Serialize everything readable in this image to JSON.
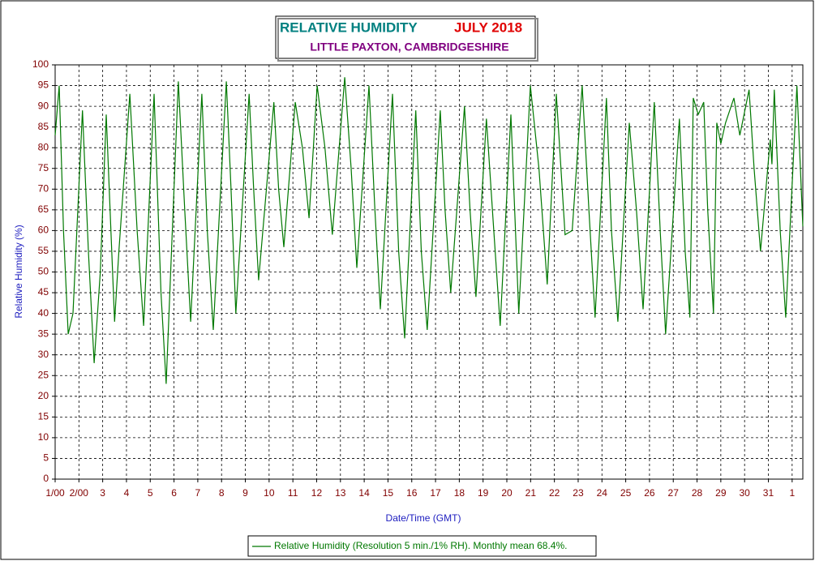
{
  "chart_data": {
    "type": "line",
    "title": "RELATIVE HUMIDITY",
    "title_date": "JULY 2018",
    "subtitle": "LITTLE PAXTON, CAMBRIDGESHIRE",
    "xlabel": "Date/Time (GMT)",
    "ylabel": "Relative Humidity (%)",
    "xlim": [
      1,
      32.45
    ],
    "ylim": [
      0,
      100
    ],
    "xticks": [
      {
        "value": 1,
        "label": "1/00"
      },
      {
        "value": 2,
        "label": "2/00"
      },
      3,
      4,
      5,
      6,
      7,
      8,
      9,
      10,
      11,
      12,
      13,
      14,
      15,
      16,
      17,
      18,
      19,
      20,
      21,
      22,
      23,
      24,
      25,
      26,
      27,
      28,
      29,
      30,
      31,
      {
        "value": 32,
        "label": "1"
      }
    ],
    "yticks": [
      0,
      5,
      10,
      15,
      20,
      25,
      30,
      35,
      40,
      45,
      50,
      55,
      60,
      65,
      70,
      75,
      80,
      85,
      90,
      95,
      100
    ],
    "grid": true,
    "series": [
      {
        "name": "Relative Humidity (Resolution 5 min./1% RH). Monthly mean 68.4%.",
        "color": "#007800",
        "x": [
          1.0,
          1.17,
          1.35,
          1.55,
          1.75,
          2.15,
          2.4,
          2.64,
          2.9,
          3.15,
          3.5,
          3.68,
          4.14,
          4.45,
          4.72,
          5.16,
          5.45,
          5.67,
          6.18,
          6.45,
          6.7,
          7.17,
          7.4,
          7.65,
          8.2,
          8.4,
          8.6,
          9.16,
          9.35,
          9.56,
          10.2,
          10.4,
          10.62,
          11.1,
          11.4,
          11.68,
          12.02,
          12.35,
          12.66,
          13.18,
          13.45,
          13.69,
          14.2,
          14.45,
          14.68,
          15.19,
          15.45,
          15.7,
          16.17,
          16.4,
          16.65,
          17.2,
          17.4,
          17.64,
          18.22,
          18.45,
          18.7,
          19.14,
          19.45,
          19.72,
          20.17,
          20.5,
          20.99,
          21.35,
          21.7,
          22.08,
          22.45,
          22.75,
          23.17,
          23.45,
          23.71,
          24.19,
          24.4,
          24.67,
          25.15,
          25.45,
          25.73,
          26.2,
          26.45,
          26.68,
          27.26,
          27.5,
          27.7,
          27.84,
          28.05,
          28.28,
          28.45,
          28.69,
          28.83,
          29.0,
          29.2,
          29.55,
          29.8,
          30.19,
          30.4,
          30.67,
          31.08,
          31.15,
          31.25,
          31.5,
          31.73,
          32.2,
          32.45
        ],
        "values": [
          83,
          95,
          60,
          35,
          40,
          89,
          55,
          28,
          50,
          88,
          38,
          55,
          93,
          60,
          37,
          93,
          45,
          23,
          96,
          65,
          38,
          93,
          60,
          36,
          96,
          70,
          40,
          93,
          70,
          48,
          91,
          70,
          56,
          91,
          80,
          63,
          95,
          80,
          59,
          97,
          75,
          51,
          95,
          65,
          41,
          93,
          55,
          34,
          89,
          55,
          36,
          89,
          65,
          45,
          90,
          65,
          44,
          87,
          60,
          37,
          88,
          40,
          95,
          75,
          47,
          93,
          59,
          60,
          95,
          65,
          39,
          92,
          60,
          38,
          86,
          65,
          41,
          91,
          60,
          35,
          87,
          55,
          39,
          92,
          88,
          91,
          65,
          40,
          86,
          81,
          86,
          92,
          83,
          94,
          75,
          55,
          82,
          76,
          94,
          60,
          39,
          95,
          61
        ]
      }
    ]
  }
}
